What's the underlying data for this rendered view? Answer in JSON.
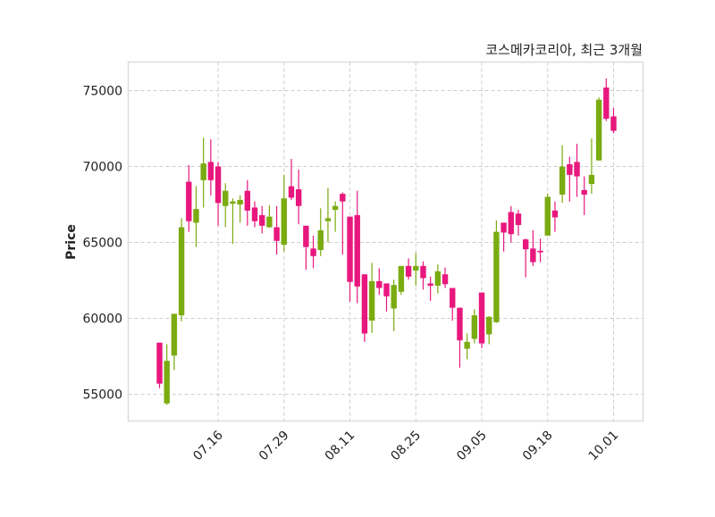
{
  "chart_data": {
    "type": "candlestick",
    "title": "코스메카코리아, 최근 3개월",
    "xlabel": "",
    "ylabel": "Price",
    "ylim": [
      53240,
      76880
    ],
    "yticks": [
      55000,
      60000,
      65000,
      70000,
      75000
    ],
    "xticks": [
      {
        "index": 8,
        "label": "07.16"
      },
      {
        "index": 17,
        "label": "07.29"
      },
      {
        "index": 26,
        "label": "08.11"
      },
      {
        "index": 35,
        "label": "08.25"
      },
      {
        "index": 44,
        "label": "09.05"
      },
      {
        "index": 53,
        "label": "09.18"
      },
      {
        "index": 62,
        "label": "10.01"
      }
    ],
    "grid": true,
    "colors": {
      "up": "#7aab10",
      "down": "#e8177d",
      "grid": "#cccccc",
      "frame": "#dddddd"
    },
    "columns": [
      "open",
      "high",
      "low",
      "close"
    ],
    "ohlc": [
      [
        58400,
        58400,
        55400,
        55700
      ],
      [
        54400,
        58300,
        54300,
        57200
      ],
      [
        57550,
        60300,
        56600,
        60300
      ],
      [
        60200,
        66600,
        59800,
        66000
      ],
      [
        69000,
        70100,
        65700,
        66400
      ],
      [
        66300,
        68700,
        64700,
        67200
      ],
      [
        69100,
        71900,
        67300,
        70200
      ],
      [
        70300,
        71800,
        68100,
        69100
      ],
      [
        70000,
        70300,
        66100,
        67600
      ],
      [
        67400,
        68900,
        66000,
        68400
      ],
      [
        67550,
        67900,
        64900,
        67700
      ],
      [
        67500,
        68100,
        66300,
        67800
      ],
      [
        68400,
        69100,
        66100,
        67100
      ],
      [
        67300,
        67700,
        66000,
        66400
      ],
      [
        66800,
        67400,
        65600,
        66100
      ],
      [
        66000,
        67450,
        65960,
        66700
      ],
      [
        66000,
        67400,
        64200,
        65100
      ],
      [
        64850,
        69450,
        64400,
        67900
      ],
      [
        68700,
        70500,
        67800,
        67950
      ],
      [
        68500,
        69800,
        66200,
        67400
      ],
      [
        66100,
        66100,
        63200,
        64700
      ],
      [
        64600,
        65450,
        63300,
        64100
      ],
      [
        64500,
        67250,
        64100,
        65800
      ],
      [
        66400,
        68600,
        65000,
        66600
      ],
      [
        67150,
        67700,
        65700,
        67400
      ],
      [
        68200,
        68300,
        64200,
        67700
      ],
      [
        66700,
        66700,
        61100,
        62400
      ],
      [
        66800,
        68400,
        61000,
        62100
      ],
      [
        62900,
        62900,
        58450,
        59000
      ],
      [
        59850,
        63650,
        59050,
        62450
      ],
      [
        62450,
        63300,
        61550,
        62000
      ],
      [
        62300,
        62300,
        60450,
        61450
      ],
      [
        60650,
        62550,
        59150,
        62200
      ],
      [
        61750,
        63450,
        61550,
        63450
      ],
      [
        63450,
        63950,
        62550,
        62750
      ],
      [
        63150,
        64300,
        62150,
        63450
      ],
      [
        63450,
        63750,
        61900,
        62650
      ],
      [
        62300,
        62750,
        61150,
        62150
      ],
      [
        62150,
        63550,
        61650,
        63100
      ],
      [
        62900,
        63350,
        62000,
        62250
      ],
      [
        62000,
        62000,
        59850,
        60700
      ],
      [
        60700,
        60700,
        56750,
        58550
      ],
      [
        58000,
        59000,
        57300,
        58450
      ],
      [
        58650,
        60600,
        58350,
        60200
      ],
      [
        61700,
        61700,
        58050,
        58350
      ],
      [
        58950,
        60150,
        58300,
        60100
      ],
      [
        59750,
        66450,
        59700,
        65700
      ],
      [
        66300,
        66300,
        64400,
        65650
      ],
      [
        67000,
        67400,
        65000,
        65550
      ],
      [
        66900,
        67150,
        65450,
        66150
      ],
      [
        65200,
        65250,
        62700,
        64550
      ],
      [
        64600,
        65800,
        63450,
        63700
      ],
      [
        64450,
        65250,
        63700,
        64350
      ],
      [
        65450,
        68200,
        65450,
        68000
      ],
      [
        67100,
        67700,
        65700,
        66650
      ],
      [
        68150,
        71400,
        67600,
        70000
      ],
      [
        70150,
        70650,
        67700,
        69450
      ],
      [
        70300,
        71500,
        68000,
        69350
      ],
      [
        68450,
        69350,
        66800,
        68150
      ],
      [
        68850,
        71850,
        68200,
        69450
      ],
      [
        70400,
        74550,
        70400,
        74400
      ],
      [
        75200,
        75800,
        73000,
        73150
      ],
      [
        73300,
        73850,
        72200,
        72350
      ]
    ]
  }
}
